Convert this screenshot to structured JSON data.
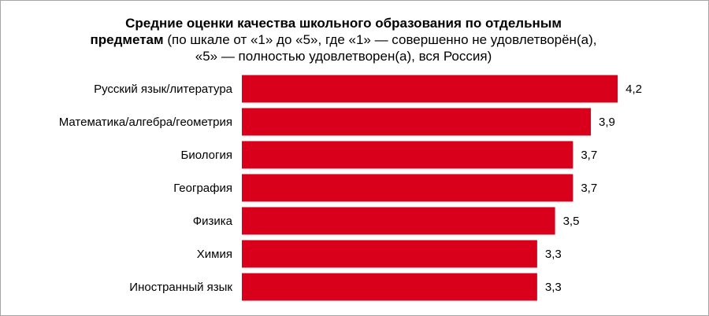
{
  "chart_data": {
    "type": "bar",
    "orientation": "horizontal",
    "title": "Средние оценки качества школьного образования по отдельным предметам",
    "subtitle": "(по шкале от «1» до «5», где «1» — совершенно не удовлетворён(а), «5» — полностью удовлетворен(а), вся Россия)",
    "categories": [
      "Русский язык/литература",
      "Математика/алгебра/геометрия",
      "Биология",
      "География",
      "Физика",
      "Химия",
      "Иностранный язык"
    ],
    "values": [
      4.2,
      3.9,
      3.7,
      3.7,
      3.5,
      3.3,
      3.3
    ],
    "value_labels": [
      "4,2",
      "3,9",
      "3,7",
      "3,7",
      "3,5",
      "3,3",
      "3,3"
    ],
    "color": "#d9001b"
  }
}
